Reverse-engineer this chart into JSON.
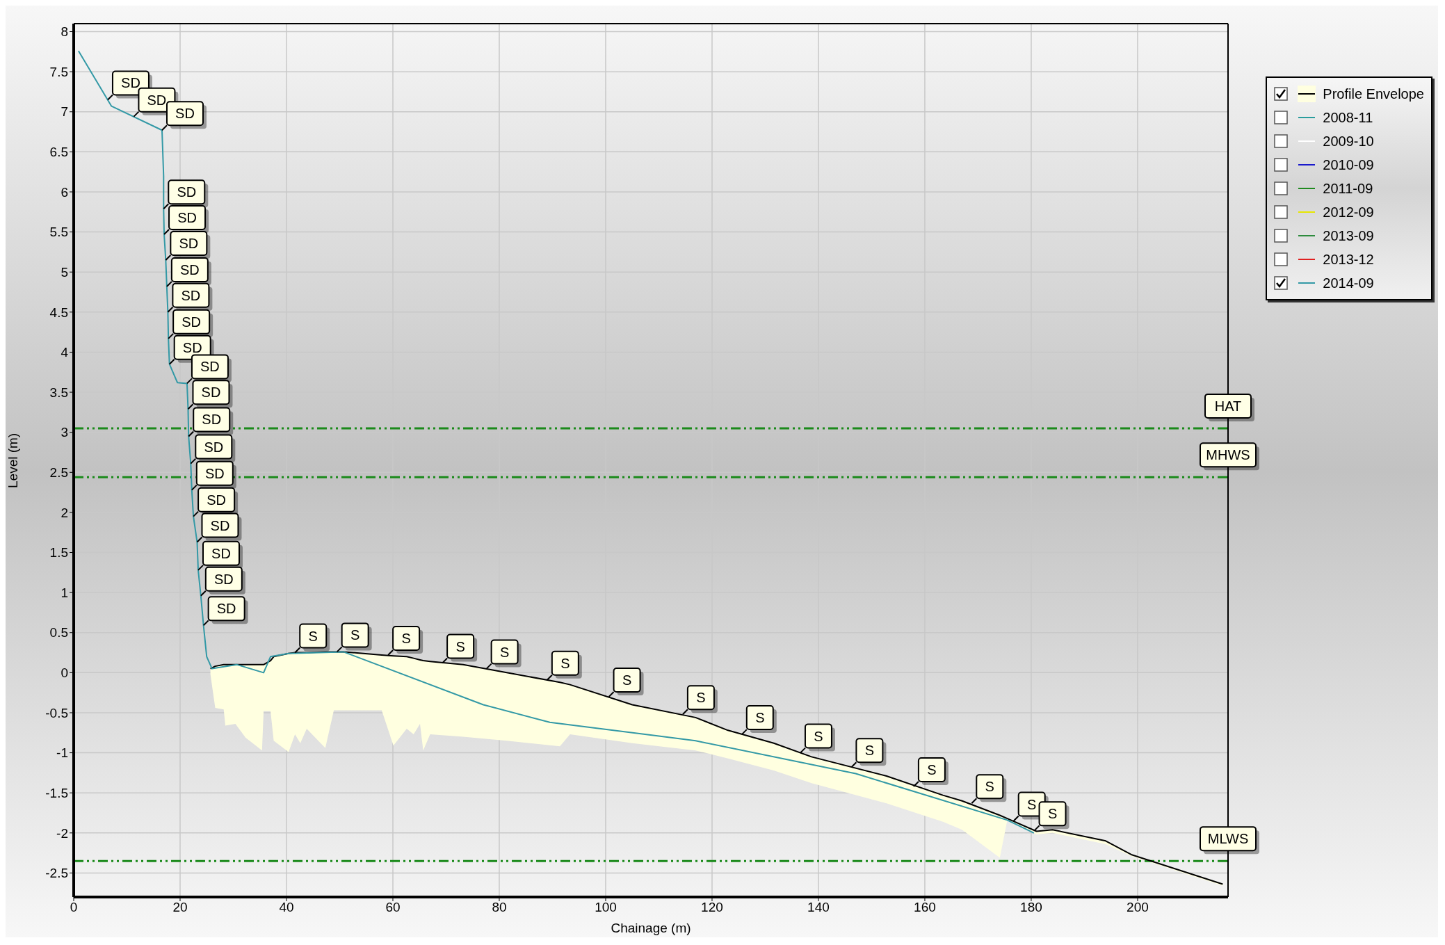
{
  "chart_data": {
    "type": "line",
    "xlabel": "Chainage (m)",
    "ylabel": "Level (m)",
    "xlim": [
      0,
      217
    ],
    "xticks": [
      0,
      20,
      40,
      60,
      80,
      100,
      120,
      140,
      160,
      180,
      200
    ],
    "ylim": [
      -2.8,
      8.1
    ],
    "yticks": [
      -2.5,
      -2,
      -1.5,
      -1,
      -0.5,
      0,
      0.5,
      1,
      1.5,
      2,
      2.5,
      3,
      3.5,
      4,
      4.5,
      5,
      5.5,
      6,
      6.5,
      7,
      7.5,
      8
    ],
    "grid": true,
    "legend": "top right",
    "line_style": "solid",
    "series": [
      {
        "name": "Profile Envelope",
        "type": "line",
        "color": "#000000",
        "x": [
          25.7,
          26.6,
          28.2,
          28.5,
          30.4,
          32.3,
          35.4,
          35.7,
          37.0,
          37.6,
          40.4,
          41.6,
          42.6,
          43.8,
          47.3,
          48.9,
          50.7,
          57.9,
          60.1,
          62.6,
          63.9,
          65.1,
          65.7,
          67.0,
          73.2,
          81.4,
          91.4,
          93.3,
          105,
          116.9,
          123,
          131.6,
          138.7,
          152.8,
          163.4,
          167,
          174.1,
          175.5,
          181,
          184,
          194,
          198.8,
          216
        ],
        "values": [
          0.05,
          0.08,
          0.1,
          0.1,
          0.1,
          0.1,
          0.1,
          0.1,
          0.15,
          0.2,
          0.24,
          0.25,
          0.25,
          0.25,
          0.26,
          0.26,
          0.26,
          0.22,
          0.21,
          0.2,
          0.18,
          0.16,
          0.15,
          0.14,
          0.1,
          0.0,
          -0.12,
          -0.15,
          -0.4,
          -0.56,
          -0.72,
          -0.88,
          -1.05,
          -1.29,
          -1.53,
          -1.6,
          -1.78,
          -1.82,
          -1.98,
          -1.96,
          -2.1,
          -2.27,
          -2.64
        ],
        "upper": [
          0.05,
          0.08,
          0.1,
          0.1,
          0.1,
          0.1,
          0.1,
          0.1,
          0.15,
          0.2,
          0.24,
          0.25,
          0.25,
          0.25,
          0.26,
          0.26,
          0.26,
          0.22,
          0.21,
          0.2,
          0.18,
          0.16,
          0.15,
          0.14,
          0.1,
          0.0,
          -0.12,
          -0.15,
          -0.4,
          -0.56,
          -0.72,
          -0.88,
          -1.05,
          -1.29,
          -1.53,
          -1.6,
          -1.78,
          -1.82,
          -1.98,
          -1.96,
          -2.1,
          -2.27,
          -2.64
        ],
        "lower": [
          -0.02,
          -0.44,
          -0.46,
          -0.66,
          -0.64,
          -0.81,
          -0.97,
          -0.48,
          -0.48,
          -0.85,
          -0.99,
          -0.77,
          -0.88,
          -0.7,
          -0.94,
          -0.47,
          -0.47,
          -0.47,
          -0.91,
          -0.7,
          -0.77,
          -0.64,
          -0.97,
          -0.77,
          -0.8,
          -0.85,
          -0.92,
          -0.77,
          -0.88,
          -0.97,
          -1.07,
          -1.22,
          -1.38,
          -1.63,
          -1.86,
          -1.96,
          -2.31,
          -1.84,
          -2.02,
          -2.0,
          -2.14,
          -2.29,
          -2.66
        ]
      },
      {
        "name": "2008-11",
        "color": "#2a9d9d"
      },
      {
        "name": "2009-10",
        "color": "#ffffff"
      },
      {
        "name": "2010-09",
        "color": "#1a1acc"
      },
      {
        "name": "2011-09",
        "color": "#1f8a1f"
      },
      {
        "name": "2012-09",
        "color": "#e6e600"
      },
      {
        "name": "2013-09",
        "color": "#2e8b3e"
      },
      {
        "name": "2013-12",
        "color": "#e02020"
      },
      {
        "name": "2014-09",
        "color": "#3399a6",
        "x": [
          0.9,
          7.1,
          16.6,
          16.9,
          16.9,
          17.0,
          17.3,
          17.5,
          17.7,
          17.8,
          18.0,
          19.5,
          21.3,
          21.5,
          21.6,
          22.0,
          22.2,
          22.5,
          23.2,
          23.4,
          23.9,
          24.4,
          25.0,
          26.0,
          30.7,
          35.7,
          37.0,
          40.4,
          50.7,
          77,
          89.5,
          110,
          116.9,
          147,
          175.5,
          180.5
        ],
        "values": [
          7.76,
          7.07,
          6.77,
          6.2,
          5.79,
          5.47,
          5.15,
          4.82,
          4.5,
          4.17,
          3.85,
          3.62,
          3.61,
          3.29,
          2.95,
          2.61,
          2.28,
          1.95,
          1.63,
          1.28,
          0.96,
          0.59,
          0.2,
          0.05,
          0.1,
          0.0,
          0.2,
          0.24,
          0.26,
          -0.4,
          -0.62,
          -0.79,
          -0.85,
          -1.26,
          -1.84,
          -2.0
        ]
      }
    ],
    "ref_lines": [
      {
        "axis": "y",
        "value": 3.05,
        "label": "HAT",
        "color": "#1a8a1a",
        "line_style": "dashed"
      },
      {
        "axis": "y",
        "value": 2.44,
        "label": "MHWS",
        "color": "#1a8a1a",
        "line_style": "dashed"
      },
      {
        "axis": "y",
        "value": -2.35,
        "label": "MLWS",
        "color": "#1a8a1a",
        "line_style": "dashed"
      }
    ],
    "annotations": [
      {
        "text": "SD",
        "x": 6.4,
        "y": 7.15
      },
      {
        "text": "SD",
        "x": 11.3,
        "y": 6.94
      },
      {
        "text": "SD",
        "x": 16.6,
        "y": 6.77
      },
      {
        "text": "SD",
        "x": 16.9,
        "y": 5.79
      },
      {
        "text": "SD",
        "x": 17.0,
        "y": 5.47
      },
      {
        "text": "SD",
        "x": 17.3,
        "y": 5.15
      },
      {
        "text": "SD",
        "x": 17.5,
        "y": 4.82
      },
      {
        "text": "SD",
        "x": 17.7,
        "y": 4.5
      },
      {
        "text": "SD",
        "x": 17.8,
        "y": 4.17
      },
      {
        "text": "SD",
        "x": 18.0,
        "y": 3.85
      },
      {
        "text": "SD",
        "x": 21.3,
        "y": 3.61
      },
      {
        "text": "SD",
        "x": 21.5,
        "y": 3.29
      },
      {
        "text": "SD",
        "x": 21.6,
        "y": 2.95
      },
      {
        "text": "SD",
        "x": 22.0,
        "y": 2.61
      },
      {
        "text": "SD",
        "x": 22.2,
        "y": 2.28
      },
      {
        "text": "SD",
        "x": 22.5,
        "y": 1.95
      },
      {
        "text": "SD",
        "x": 23.2,
        "y": 1.63
      },
      {
        "text": "SD",
        "x": 23.4,
        "y": 1.28
      },
      {
        "text": "SD",
        "x": 23.9,
        "y": 0.96
      },
      {
        "text": "SD",
        "x": 24.4,
        "y": 0.59
      },
      {
        "text": "S",
        "x": 41.6,
        "y": 0.25
      },
      {
        "text": "S",
        "x": 49.5,
        "y": 0.26
      },
      {
        "text": "S",
        "x": 59.1,
        "y": 0.22
      },
      {
        "text": "S",
        "x": 69.3,
        "y": 0.12
      },
      {
        "text": "S",
        "x": 77.6,
        "y": 0.05
      },
      {
        "text": "S",
        "x": 89.0,
        "y": -0.09
      },
      {
        "text": "S",
        "x": 100.6,
        "y": -0.3
      },
      {
        "text": "S",
        "x": 114.5,
        "y": -0.52
      },
      {
        "text": "S",
        "x": 125.6,
        "y": -0.77
      },
      {
        "text": "S",
        "x": 136.6,
        "y": -1.0
      },
      {
        "text": "S",
        "x": 146.2,
        "y": -1.18
      },
      {
        "text": "S",
        "x": 157.9,
        "y": -1.42
      },
      {
        "text": "S",
        "x": 168.8,
        "y": -1.63
      },
      {
        "text": "S",
        "x": 176.7,
        "y": -1.85
      },
      {
        "text": "S",
        "x": 180.6,
        "y": -1.97
      }
    ]
  }
}
